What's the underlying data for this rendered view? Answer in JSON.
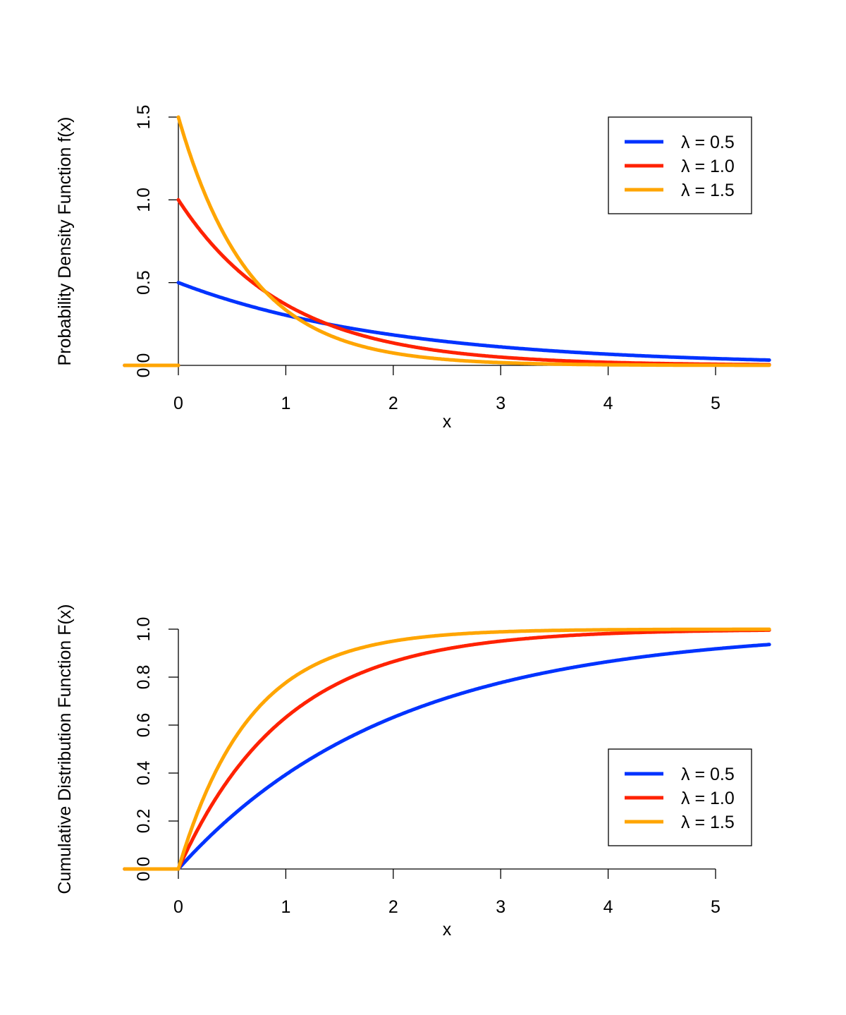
{
  "chart_data": [
    {
      "type": "line",
      "function": "exponential pdf f(x) = λ·exp(-λx) for x ≥ 0, 0 otherwise",
      "xlabel": "x",
      "ylabel": "Probability Density Function f(x)",
      "xlim": [
        -0.5,
        5.5
      ],
      "ylim": [
        0,
        1.5
      ],
      "xticks": [
        "0",
        "1",
        "2",
        "3",
        "4",
        "5"
      ],
      "yticks": [
        "0.0",
        "0.5",
        "1.0",
        "1.5"
      ],
      "grid": false,
      "legend_position": "top-right",
      "series": [
        {
          "name": "λ = 0.5",
          "lambda": 0.5,
          "color": "#0033ff",
          "x": [
            -0.5,
            0,
            1,
            2,
            3,
            4,
            5,
            5.5
          ],
          "y": [
            0,
            0.5,
            0.303,
            0.184,
            0.112,
            0.068,
            0.041,
            0.032
          ]
        },
        {
          "name": "λ = 1.0",
          "lambda": 1.0,
          "color": "#ff2200",
          "x": [
            -0.5,
            0,
            1,
            2,
            3,
            4,
            5,
            5.5
          ],
          "y": [
            0,
            1.0,
            0.368,
            0.135,
            0.05,
            0.018,
            0.007,
            0.004
          ]
        },
        {
          "name": "λ = 1.5",
          "lambda": 1.5,
          "color": "#ffa500",
          "x": [
            -0.5,
            0,
            1,
            2,
            3,
            4,
            5,
            5.5
          ],
          "y": [
            0,
            1.5,
            0.335,
            0.075,
            0.017,
            0.004,
            0.001,
            0.0004
          ]
        }
      ]
    },
    {
      "type": "line",
      "function": "exponential cdf F(x) = 1 - exp(-λx) for x ≥ 0, 0 otherwise",
      "xlabel": "x",
      "ylabel": "Cumulative Distribution Function F(x)",
      "xlim": [
        -0.5,
        5.5
      ],
      "ylim": [
        0,
        1.0
      ],
      "xticks": [
        "0",
        "1",
        "2",
        "3",
        "4",
        "5"
      ],
      "yticks": [
        "0.0",
        "0.2",
        "0.4",
        "0.6",
        "0.8",
        "1.0"
      ],
      "grid": false,
      "legend_position": "bottom-right",
      "series": [
        {
          "name": "λ = 0.5",
          "lambda": 0.5,
          "color": "#0033ff",
          "x": [
            -0.5,
            0,
            1,
            2,
            3,
            4,
            5,
            5.5
          ],
          "y": [
            0,
            0,
            0.393,
            0.632,
            0.777,
            0.865,
            0.918,
            0.936
          ]
        },
        {
          "name": "λ = 1.0",
          "lambda": 1.0,
          "color": "#ff2200",
          "x": [
            -0.5,
            0,
            1,
            2,
            3,
            4,
            5,
            5.5
          ],
          "y": [
            0,
            0,
            0.632,
            0.865,
            0.95,
            0.982,
            0.993,
            0.996
          ]
        },
        {
          "name": "λ = 1.5",
          "lambda": 1.5,
          "color": "#ffa500",
          "x": [
            -0.5,
            0,
            1,
            2,
            3,
            4,
            5,
            5.5
          ],
          "y": [
            0,
            0,
            0.777,
            0.95,
            0.989,
            0.998,
            0.999,
            1.0
          ]
        }
      ]
    }
  ]
}
